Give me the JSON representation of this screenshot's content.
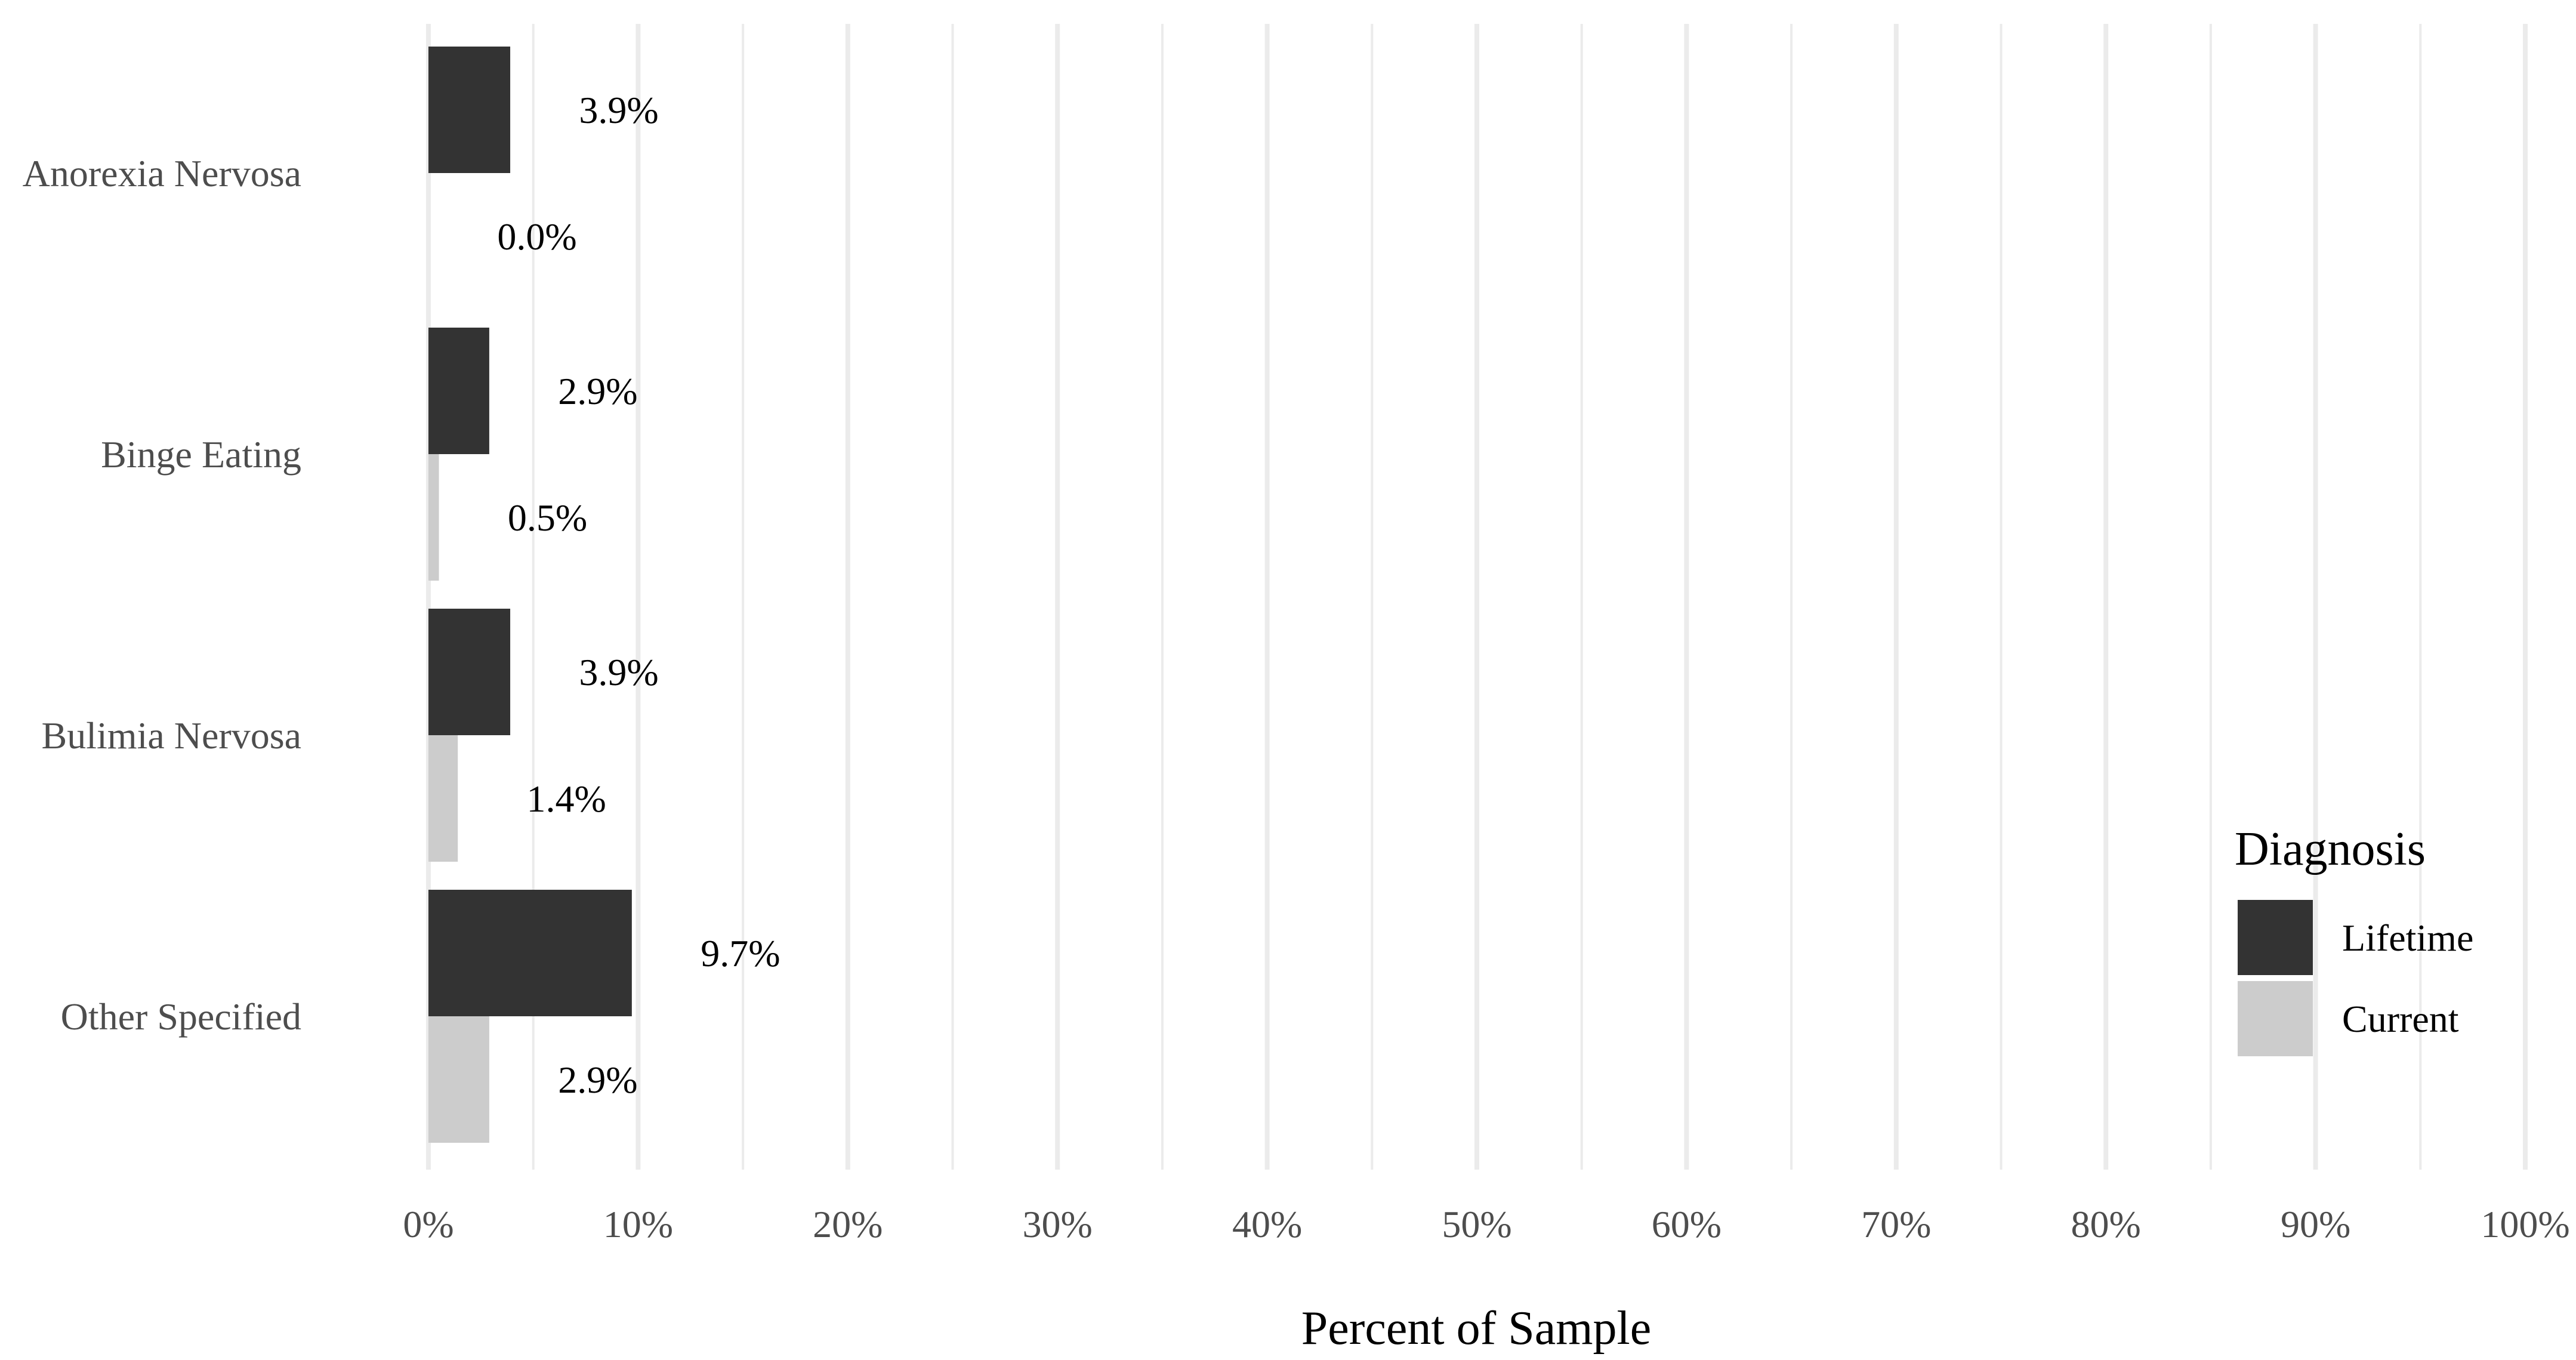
{
  "chart_data": {
    "type": "bar",
    "orientation": "horizontal",
    "categories": [
      "Anorexia Nervosa",
      "Binge Eating",
      "Bulimia Nervosa",
      "Other Specified"
    ],
    "series": [
      {
        "name": "Lifetime",
        "values": [
          3.9,
          2.9,
          3.9,
          9.7
        ],
        "labels": [
          "3.9%",
          "2.9%",
          "3.9%",
          "9.7%"
        ],
        "color": "#333333"
      },
      {
        "name": "Current",
        "values": [
          0.0,
          0.5,
          1.4,
          2.9
        ],
        "labels": [
          "0.0%",
          "0.5%",
          "1.4%",
          "2.9%"
        ],
        "color": "#cccccc"
      }
    ],
    "xlabel": "Percent of Sample",
    "ylabel": "",
    "xlim": [
      0,
      100
    ],
    "x_ticks": [
      0,
      10,
      20,
      30,
      40,
      50,
      60,
      70,
      80,
      90,
      100
    ],
    "x_tick_labels": [
      "0%",
      "10%",
      "20%",
      "30%",
      "40%",
      "50%",
      "60%",
      "70%",
      "80%",
      "90%",
      "100%"
    ],
    "grid": true,
    "grid_color": "#ebebeb",
    "legend": {
      "title": "Diagnosis",
      "placement": "right"
    }
  }
}
